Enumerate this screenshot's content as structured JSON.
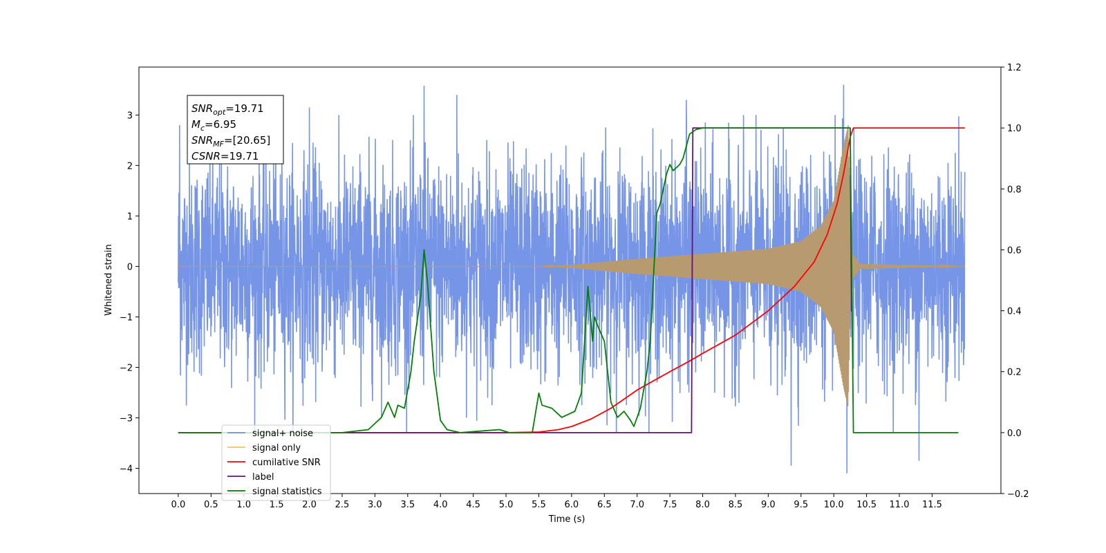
{
  "chart_data": {
    "type": "line",
    "xlabel": "Time (s)",
    "ylabel": "Whitened strain",
    "xlim": [
      -0.6,
      12.55
    ],
    "ylim": [
      -4.5,
      3.95
    ],
    "y2lim": [
      -0.2,
      1.2
    ],
    "xticks": [
      0.0,
      0.5,
      1.0,
      1.5,
      2.0,
      2.5,
      3.0,
      3.5,
      4.0,
      4.5,
      5.0,
      5.5,
      6.0,
      6.5,
      7.0,
      7.5,
      8.0,
      8.5,
      9.0,
      9.5,
      10.0,
      10.5,
      11.0,
      11.5
    ],
    "xtick_labels": [
      "0.0",
      "0.5",
      "1.0",
      "1.5",
      "2.0",
      "2.5",
      "3.0",
      "3.5",
      "4.0",
      "4.5",
      "5.0",
      "5.5",
      "6.0",
      "6.5",
      "7.0",
      "7.5",
      "8.0",
      "8.5",
      "9.0",
      "9.5",
      "10.0",
      "10.5",
      "11.0",
      "11.5"
    ],
    "yticks": [
      -4,
      -3,
      -2,
      -1,
      0,
      1,
      2,
      3
    ],
    "ytick_labels": [
      "−4",
      "−3",
      "−2",
      "−1",
      "0",
      "1",
      "2",
      "3"
    ],
    "y2ticks": [
      -0.2,
      0.0,
      0.2,
      0.4,
      0.6,
      0.8,
      1.0,
      1.2
    ],
    "y2tick_labels": [
      "−0.2",
      "0.0",
      "0.2",
      "0.4",
      "0.6",
      "0.8",
      "1.0",
      "1.2"
    ],
    "grid": false,
    "legend": {
      "location": "lower-left",
      "entries": [
        {
          "label": "signal+ noise",
          "color": "#6f8fe6"
        },
        {
          "label": "signal only",
          "color": "#ffbf66"
        },
        {
          "label": "cumilative SNR",
          "color": "#ff0000"
        },
        {
          "label": "label",
          "color": "#6a0f7a"
        },
        {
          "label": "signal statistics",
          "color": "#008000"
        }
      ]
    },
    "annotation": {
      "lines": [
        {
          "sym": "SNR",
          "sub": "opt",
          "rest": "=19.71"
        },
        {
          "sym": "M",
          "sub": "c",
          "rest": "=6.95"
        },
        {
          "sym": "SNR",
          "sub": "MF",
          "rest": "=[20.65]"
        },
        {
          "sym": "CSNR",
          "sub": "",
          "rest": "=19.71"
        }
      ]
    },
    "series": [
      {
        "name": "signal+ noise",
        "color": "#6f8fe6",
        "axis": "left",
        "x_range": [
          0.0,
          12.0
        ],
        "noise_sigma": 1.0,
        "peaks": [
          [
            0.02,
            2.8
          ],
          [
            3.75,
            3.58
          ],
          [
            7.75,
            3.3
          ],
          [
            10.15,
            3.6
          ],
          [
            10.2,
            -4.1
          ],
          [
            9.35,
            -3.95
          ],
          [
            11.3,
            -3.85
          ],
          [
            2.0,
            3.15
          ],
          [
            4.25,
            3.4
          ]
        ]
      },
      {
        "name": "signal only",
        "color": "#b89a70",
        "axis": "left",
        "x_range": [
          0.0,
          12.0
        ],
        "chirp_start": 5.5,
        "merger": 10.25,
        "amplitude_at": [
          [
            5.5,
            0.0
          ],
          [
            6.0,
            0.03
          ],
          [
            7.0,
            0.15
          ],
          [
            8.0,
            0.25
          ],
          [
            9.0,
            0.35
          ],
          [
            9.5,
            0.5
          ],
          [
            9.8,
            0.8
          ],
          [
            10.0,
            1.3
          ],
          [
            10.15,
            2.4
          ],
          [
            10.22,
            2.8
          ],
          [
            10.26,
            0.3
          ],
          [
            10.4,
            0.05
          ],
          [
            12.0,
            0.0
          ]
        ]
      },
      {
        "name": "cumilative SNR",
        "color": "#ff0000",
        "axis": "right",
        "x": [
          0.0,
          5.0,
          5.5,
          5.8,
          6.0,
          6.3,
          6.6,
          7.0,
          7.5,
          7.8,
          8.0,
          8.5,
          9.0,
          9.4,
          9.7,
          9.9,
          10.05,
          10.15,
          10.25,
          10.3,
          12.0
        ],
        "y": [
          0.0,
          0.0,
          0.002,
          0.01,
          0.02,
          0.045,
          0.08,
          0.14,
          0.2,
          0.235,
          0.26,
          0.32,
          0.4,
          0.48,
          0.56,
          0.65,
          0.75,
          0.85,
          0.97,
          1.0,
          1.0
        ]
      },
      {
        "name": "label",
        "color": "#6a0f7a",
        "axis": "right",
        "x": [
          0.0,
          7.83,
          7.85,
          10.25,
          10.27,
          10.29
        ],
        "y": [
          0.0,
          0.0,
          1.0,
          1.0,
          0.4,
          0.4
        ]
      },
      {
        "name": "signal statistics",
        "color": "#008000",
        "axis": "right",
        "x": [
          0.0,
          2.5,
          2.9,
          3.0,
          3.1,
          3.2,
          3.3,
          3.35,
          3.45,
          3.55,
          3.6,
          3.7,
          3.75,
          3.8,
          3.85,
          3.9,
          4.0,
          4.1,
          4.3,
          4.6,
          4.9,
          5.05,
          5.4,
          5.5,
          5.55,
          5.7,
          5.85,
          5.95,
          6.05,
          6.1,
          6.15,
          6.25,
          6.32,
          6.35,
          6.4,
          6.5,
          6.6,
          6.7,
          6.8,
          6.9,
          6.95,
          7.05,
          7.15,
          7.2,
          7.3,
          7.35,
          7.45,
          7.5,
          7.55,
          7.6,
          7.65,
          7.7,
          7.8,
          7.9,
          8.0,
          8.5,
          10.0,
          10.25,
          10.3,
          11.0,
          11.9
        ],
        "y": [
          0.0,
          0.0,
          0.01,
          0.03,
          0.05,
          0.1,
          0.05,
          0.09,
          0.08,
          0.2,
          0.3,
          0.45,
          0.6,
          0.5,
          0.35,
          0.2,
          0.04,
          0.01,
          0.0,
          0.005,
          0.01,
          0.0,
          0.0,
          0.13,
          0.09,
          0.08,
          0.05,
          0.06,
          0.07,
          0.1,
          0.13,
          0.48,
          0.3,
          0.38,
          0.35,
          0.3,
          0.1,
          0.05,
          0.07,
          0.04,
          0.02,
          0.08,
          0.2,
          0.3,
          0.72,
          0.75,
          0.85,
          0.88,
          0.86,
          0.87,
          0.88,
          0.9,
          0.98,
          0.995,
          1.0,
          1.0,
          1.0,
          1.0,
          0.0,
          0.0,
          0.0
        ]
      }
    ]
  }
}
